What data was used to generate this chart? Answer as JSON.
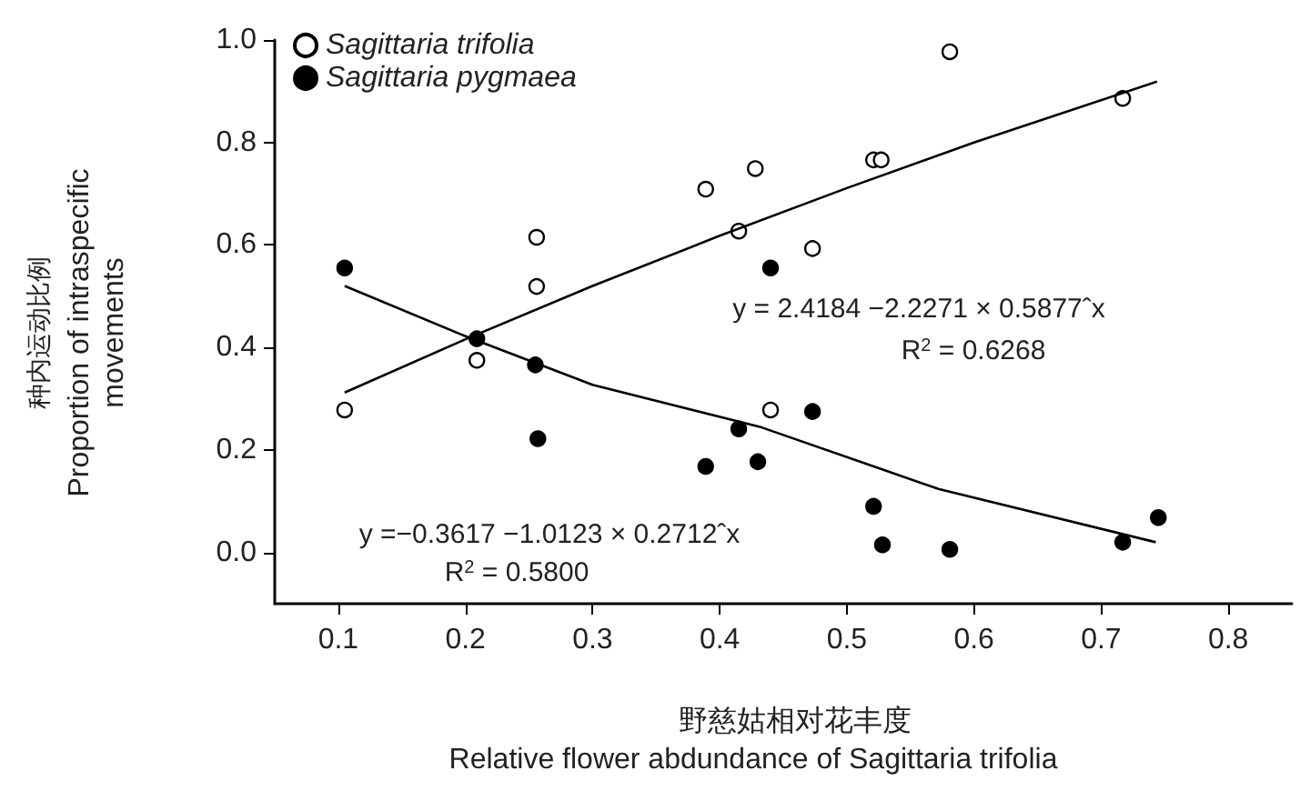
{
  "chart_data": {
    "type": "scatter",
    "xlabel": "野慈姑相对花丰度\nRelative flower abdundance of Sagittaria trifolia",
    "ylabel": "种内运动比例\nProportion of intraspecific\nmovements",
    "xlim": [
      0.05,
      0.85
    ],
    "xticks": [
      0.1,
      0.2,
      0.3,
      0.4,
      0.5,
      0.6,
      0.7,
      0.8
    ],
    "ylim": [
      -0.1,
      1.0
    ],
    "yticks": [
      {
        "value": 0,
        "label": "0.0"
      },
      {
        "value": 0.2,
        "label": "0.2"
      },
      {
        "value": 0.4,
        "label": "0.4"
      },
      {
        "value": 0.6,
        "label": "0.6"
      },
      {
        "value": 0.8,
        "label": "0.8"
      },
      {
        "value": 1,
        "label": "1.0"
      }
    ],
    "grid": false,
    "legend": "top left",
    "marker": "circle",
    "series": [
      {
        "name": "Sagittaria trifolia",
        "color": "#ffffff",
        "x": [
          0.105,
          0.209,
          0.256,
          0.256,
          0.389,
          0.428,
          0.415,
          0.44,
          0.581,
          0.521,
          0.527,
          0.473,
          0.717
        ],
        "values": [
          0.278,
          0.375,
          0.519,
          0.615,
          0.709,
          0.749,
          0.627,
          0.278,
          0.977,
          0.766,
          0.766,
          0.593,
          0.886
        ]
      },
      {
        "name": "Sagittaria pygmaea",
        "color": "#000000",
        "x": [
          0.105,
          0.209,
          0.255,
          0.257,
          0.389,
          0.415,
          0.43,
          0.44,
          0.473,
          0.521,
          0.528,
          0.581,
          0.717,
          0.745
        ],
        "values": [
          0.555,
          0.417,
          0.366,
          0.222,
          0.168,
          0.241,
          0.177,
          0.555,
          0.275,
          0.09,
          0.015,
          0.006,
          0.02,
          0.068
        ]
      },
      {
        "type": "line",
        "color": "#000000",
        "marker": "none",
        "x": [
          0.105,
          0.2,
          0.3,
          0.4,
          0.5,
          0.6,
          0.744
        ],
        "values": [
          0.312,
          0.416,
          0.52,
          0.618,
          0.711,
          0.8,
          0.919
        ]
      },
      {
        "type": "line",
        "color": "#000000",
        "marker": "none",
        "x": [
          0.105,
          0.2,
          0.3,
          0.433,
          0.572,
          0.743
        ],
        "values": [
          0.52,
          0.422,
          0.327,
          0.244,
          0.124,
          0.02
        ]
      }
    ],
    "annotations": [
      "y = 2.4184 −2.2271 × 0.5877ˆx",
      "R$^{2}$ = 0.6268",
      "y =−0.3617 −1.0123 × 0.2712ˆx",
      "R$^{2}$ = 0.5800"
    ]
  }
}
